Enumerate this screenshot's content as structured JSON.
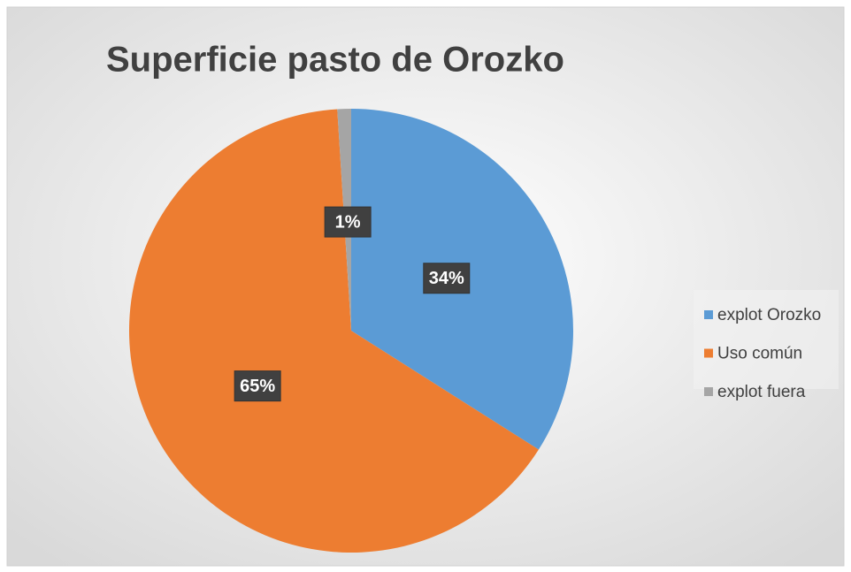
{
  "chart_data": {
    "type": "pie",
    "title": "Superficie pasto de Orozko",
    "categories": [
      "explot Orozko",
      "Uso común",
      "explot fuera"
    ],
    "values": [
      34,
      65,
      1
    ],
    "value_labels": [
      "34%",
      "65%",
      "1%"
    ],
    "colors": [
      "#5b9bd5",
      "#ed7d31",
      "#a5a5a5"
    ],
    "legend": "right"
  }
}
